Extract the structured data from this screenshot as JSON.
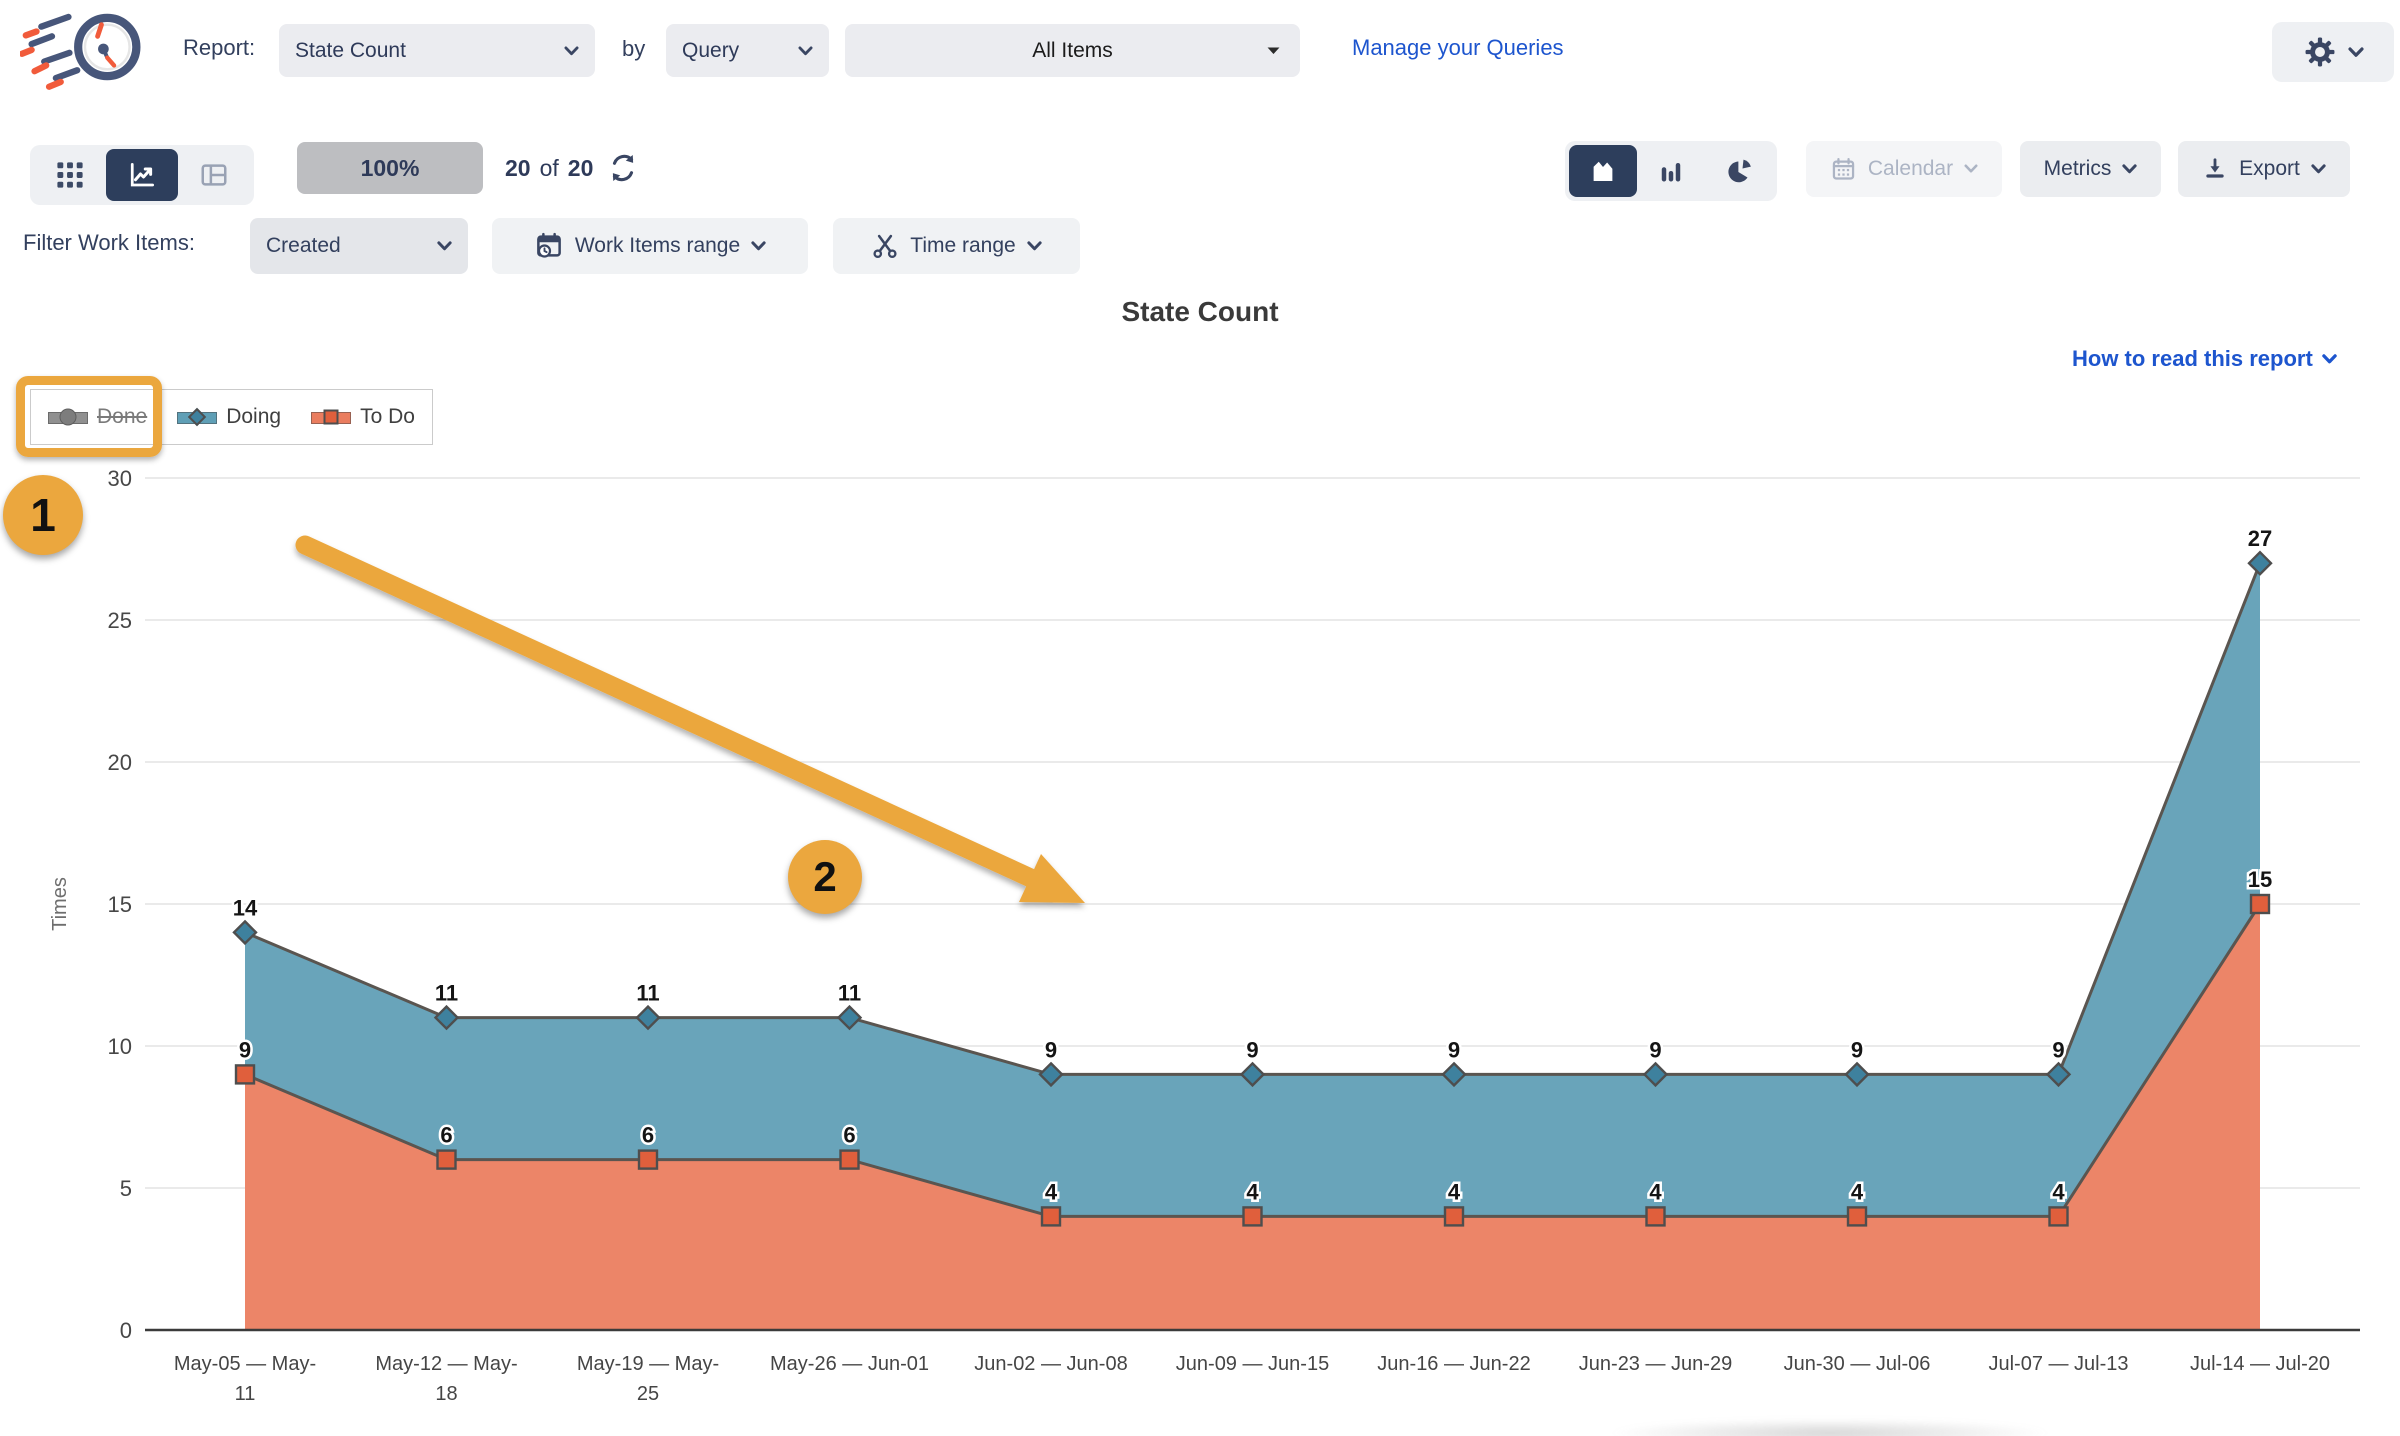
{
  "header": {
    "report_label": "Report:",
    "report_value": "State Count",
    "by_label": "by",
    "group_by_value": "Query",
    "query_value": "All Items",
    "manage_queries_link": "Manage your Queries"
  },
  "toolbar": {
    "zoom_level": "100%",
    "showing": "20",
    "of": "of",
    "total": "20",
    "calendar": "Calendar",
    "metrics": "Metrics",
    "export": "Export"
  },
  "filters": {
    "label": "Filter Work Items:",
    "created": "Created",
    "work_items_range": "Work Items range",
    "time_range": "Time range"
  },
  "report": {
    "title": "State Count",
    "help_link": "How to read this report"
  },
  "legend": [
    {
      "label": "Done",
      "state": "disabled",
      "marker": "circle",
      "color": "#8A8A8A"
    },
    {
      "label": "Doing",
      "state": "active",
      "marker": "diamond",
      "color": "#69A4BA"
    },
    {
      "label": "To Do",
      "state": "active",
      "marker": "square",
      "color": "#EC8568"
    }
  ],
  "annotations": {
    "step1": "1",
    "step2": "2"
  },
  "colors": {
    "accent_orange": "#EBA73E",
    "navy": "#2D3E5C",
    "link_blue": "#1D55CE",
    "doing_fill": "#69A4BA",
    "todo_fill": "#EC8568",
    "doing_marker": "#3E819E",
    "todo_marker": "#E05F3C"
  },
  "chart_data": {
    "type": "area",
    "stacked": false,
    "title": "State Count",
    "ylabel": "Times",
    "ylim": [
      0,
      30
    ],
    "yticks": [
      0,
      5,
      10,
      15,
      20,
      25,
      30
    ],
    "grid": true,
    "legend_position": "top-left",
    "categories": [
      "May-05 — May-11",
      "May-12 — May-18",
      "May-19 — May-25",
      "May-26 — Jun-01",
      "Jun-02 — Jun-08",
      "Jun-09 — Jun-15",
      "Jun-16 — Jun-22",
      "Jun-23 — Jun-29",
      "Jun-30 — Jul-06",
      "Jul-07 — Jul-13",
      "Jul-14 — Jul-20"
    ],
    "tick_display": [
      [
        "May-05 — May-",
        "11"
      ],
      [
        "May-12 — May-",
        "18"
      ],
      [
        "May-19 — May-",
        "25"
      ],
      [
        "May-26 — Jun-01"
      ],
      [
        "Jun-02 — Jun-08"
      ],
      [
        "Jun-09 — Jun-15"
      ],
      [
        "Jun-16 — Jun-22"
      ],
      [
        "Jun-23 — Jun-29"
      ],
      [
        "Jun-30 — Jul-06"
      ],
      [
        "Jul-07 — Jul-13"
      ],
      [
        "Jul-14 — Jul-20"
      ]
    ],
    "series": [
      {
        "name": "Doing",
        "marker": "diamond",
        "color": "#69A4BA",
        "marker_color": "#3E819E",
        "values": [
          14,
          11,
          11,
          11,
          9,
          9,
          9,
          9,
          9,
          9,
          27
        ]
      },
      {
        "name": "To Do",
        "marker": "square",
        "color": "#EC8568",
        "marker_color": "#E05F3C",
        "values": [
          9,
          6,
          6,
          6,
          4,
          4,
          4,
          4,
          4,
          4,
          15
        ]
      },
      {
        "name": "Done",
        "marker": "circle",
        "color": "#8A8A8A",
        "hidden": true
      }
    ]
  }
}
